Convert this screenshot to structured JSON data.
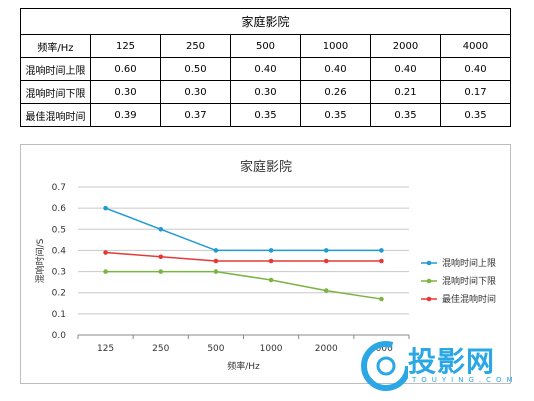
{
  "table": {
    "title": "家庭影院",
    "header": [
      "频率/Hz",
      "125",
      "250",
      "500",
      "1000",
      "2000",
      "4000"
    ],
    "rows": [
      [
        "混响时间上限",
        "0.60",
        "0.50",
        "0.40",
        "0.40",
        "0.40",
        "0.40"
      ],
      [
        "混响时间下限",
        "0.30",
        "0.30",
        "0.30",
        "0.26",
        "0.21",
        "0.17"
      ],
      [
        "最佳混响时间",
        "0.39",
        "0.37",
        "0.35",
        "0.35",
        "0.35",
        "0.35"
      ]
    ]
  },
  "chart_data": {
    "type": "line",
    "title": "家庭影院",
    "xlabel": "频率/Hz",
    "ylabel": "混响时间/S",
    "categories": [
      "125",
      "250",
      "500",
      "1000",
      "2000",
      "4000"
    ],
    "ylim": [
      0,
      0.7
    ],
    "yticks": [
      "0.0",
      "0.1",
      "0.2",
      "0.3",
      "0.4",
      "0.5",
      "0.6",
      "0.7"
    ],
    "grid": true,
    "legend": "right",
    "series": [
      {
        "name": "混响时间上限",
        "values": [
          0.6,
          0.5,
          0.4,
          0.4,
          0.4,
          0.4
        ],
        "color": "#1f9bd1"
      },
      {
        "name": "混响时间下限",
        "values": [
          0.3,
          0.3,
          0.3,
          0.26,
          0.21,
          0.17
        ],
        "color": "#7cb342"
      },
      {
        "name": "最佳混响时间",
        "values": [
          0.39,
          0.37,
          0.35,
          0.35,
          0.35,
          0.35
        ],
        "color": "#e53935"
      }
    ]
  },
  "watermark": {
    "text": "投影网",
    "sub": "TOUYING.COM",
    "color": "#2aa7e4"
  }
}
